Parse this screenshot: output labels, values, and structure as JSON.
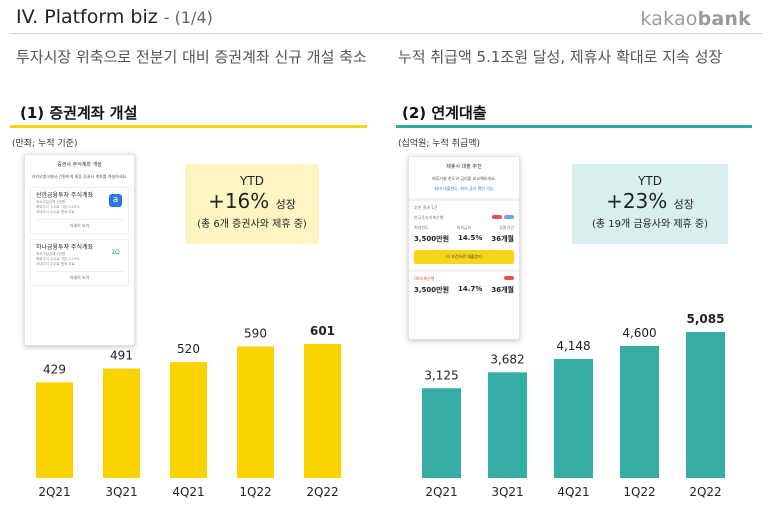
{
  "header": {
    "title": "IV. Platform biz",
    "subtitle": "- (1/4)",
    "logo_light": "kakao",
    "logo_bold": "bank"
  },
  "summary": {
    "left": "투자시장 위축으로 전분기 대비 증권계좌 신규 개설 축소",
    "right": "누적 취급액 5.1조원 달성, 제휴사 확대로 지속 성장"
  },
  "sections": {
    "left": {
      "title": "(1) 증권계좌 개설",
      "unit": "(만좌; 누적 기준)",
      "ytd_label": "YTD",
      "ytd_value": "+16%",
      "ytd_suffix": "성장",
      "ytd_note": "(총 6개 증권사와 제휴 중)"
    },
    "right": {
      "title": "(2) 연계대출",
      "unit": "(십억원; 누적 취급액)",
      "ytd_label": "YTD",
      "ytd_value": "+23%",
      "ytd_suffix": "성장",
      "ytd_note": "(총 19개 금융사와 제휴 중)"
    }
  },
  "phone_left": {
    "title": "증권사 주식계좌 개설",
    "intro": "카카오뱅크에서 간편하게 제휴 증권사 계좌를 개설하세요.",
    "card1_name": "신한금융투자 주식계좌",
    "card1_lines": [
      "최소가입금액 1만원",
      "해외주식 수수료 기본 0.25%",
      "국내주식 수수료 평생 무료"
    ],
    "card1_button": "자세히 보기",
    "card2_name": "하나금융투자 주식계좌",
    "card2_lines": [
      "최소가입금액 1만원",
      "해외주식 수수료 기본 0.25%",
      "국내주식 수수료 평생 무료"
    ],
    "card2_button": "자세히 보기"
  },
  "phone_right": {
    "title": "제휴사 대출 추천",
    "intro": "제휴사별 한도와 금리를 비교해보세요.",
    "note": "최대 대출한도, 최저 금리 확인 가능",
    "list_header": "추천 결과 1건",
    "lender1": "한국투자저축은행",
    "stat_labels": [
      "최대한도",
      "최저금리",
      "상환기간"
    ],
    "stat_values": [
      "3,500만원",
      "14.5%",
      "36개월"
    ],
    "cta": "이 조건으로 대출받기",
    "lender2": "OK저축은행",
    "stat_values2": [
      "3,500만원",
      "14.7%",
      "36개월"
    ]
  },
  "chart_data": [
    {
      "type": "bar",
      "title": "(1) 증권계좌 개설",
      "unit": "(만좌; 누적 기준)",
      "categories": [
        "2Q21",
        "3Q21",
        "4Q21",
        "1Q22",
        "2Q22"
      ],
      "values": [
        429,
        491,
        520,
        590,
        601
      ],
      "value_labels": [
        "429",
        "491",
        "520",
        "590",
        "601"
      ],
      "color": "#f7d400",
      "highlight_last": true
    },
    {
      "type": "bar",
      "title": "(2) 연계대출",
      "unit": "(십억원; 누적 취급액)",
      "categories": [
        "2Q21",
        "3Q21",
        "4Q21",
        "1Q22",
        "2Q22"
      ],
      "values": [
        3125,
        3682,
        4148,
        4600,
        5085
      ],
      "value_labels": [
        "3,125",
        "3,682",
        "4,148",
        "4,600",
        "5,085"
      ],
      "color": "#35aca4",
      "highlight_last": true
    }
  ]
}
